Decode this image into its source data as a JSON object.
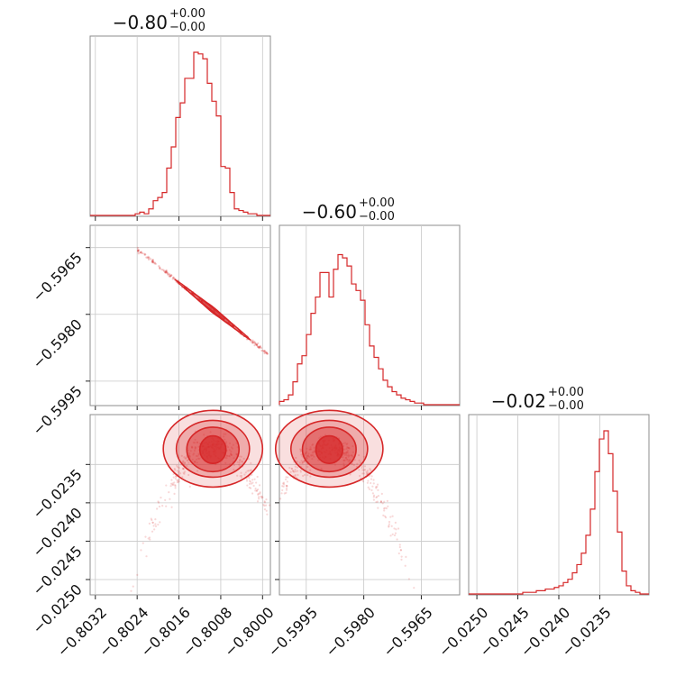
{
  "chart_data": {
    "type": "corner",
    "color": "#d62728",
    "parameters": [
      {
        "index": 0,
        "title_main": "−0.80",
        "title_sup": "+0.00",
        "title_sub": "−0.00",
        "ticks": [
          -0.8032,
          -0.8024,
          -0.8016,
          -0.8008,
          -0.8
        ],
        "tick_labels": [
          "−0.8032",
          "−0.8024",
          "−0.8016",
          "−0.8008",
          "−0.8000"
        ],
        "range": [
          -0.8033,
          -0.79985
        ],
        "hist": [
          0,
          0,
          0,
          0,
          0,
          0,
          0,
          0,
          0,
          0,
          0.01,
          0.02,
          0.01,
          0.04,
          0.09,
          0.11,
          0.14,
          0.29,
          0.42,
          0.6,
          0.69,
          0.84,
          0.84,
          1.0,
          0.99,
          0.96,
          0.81,
          0.7,
          0.61,
          0.3,
          0.29,
          0.14,
          0.04,
          0.03,
          0.02,
          0.01,
          0.01,
          0,
          0,
          0
        ]
      },
      {
        "index": 1,
        "title_main": "−0.60",
        "title_sup": "+0.00",
        "title_sub": "−0.00",
        "ticks": [
          -0.5995,
          -0.598,
          -0.5965
        ],
        "tick_labels": [
          "−0.5995",
          "−0.5980",
          "−0.5965"
        ],
        "range": [
          -0.6002,
          -0.5955
        ],
        "hist": [
          0.02,
          0.03,
          0.06,
          0.14,
          0.25,
          0.3,
          0.43,
          0.56,
          0.66,
          0.81,
          0.81,
          0.66,
          0.83,
          0.92,
          0.9,
          0.85,
          0.74,
          0.7,
          0.64,
          0.49,
          0.36,
          0.29,
          0.22,
          0.15,
          0.11,
          0.08,
          0.06,
          0.04,
          0.03,
          0.02,
          0.01,
          0.01,
          0,
          0,
          0,
          0,
          0,
          0,
          0,
          0
        ]
      },
      {
        "index": 2,
        "title_main": "−0.02",
        "title_sup": "+0.00",
        "title_sub": "−0.00",
        "ticks": [
          -0.025,
          -0.0245,
          -0.024,
          -0.0235
        ],
        "tick_labels": [
          "−0.0250",
          "−0.0245",
          "−0.0240",
          "−0.0235"
        ],
        "range": [
          -0.0251,
          -0.0229
        ],
        "hist": [
          0,
          0,
          0,
          0,
          0,
          0,
          0,
          0,
          0,
          0,
          0,
          0,
          0.01,
          0.01,
          0.01,
          0.02,
          0.02,
          0.03,
          0.03,
          0.04,
          0.05,
          0.07,
          0.09,
          0.13,
          0.18,
          0.25,
          0.36,
          0.52,
          0.75,
          0.95,
          1.0,
          0.86,
          0.63,
          0.38,
          0.14,
          0.05,
          0.02,
          0.01,
          0,
          0
        ]
      }
    ],
    "y_ticks_row1": [
      -0.5965,
      -0.598,
      -0.5995
    ],
    "y_tick_labels_row1": [
      "−0.5965",
      "−0.5980",
      "−0.5995"
    ],
    "y_ticks_row2": [
      -0.0235,
      -0.024,
      -0.0245,
      -0.025
    ],
    "y_tick_labels_row2": [
      "−0.0235",
      "−0.0240",
      "−0.0245",
      "−0.0250"
    ],
    "contours_01": {
      "center": [
        -0.80095,
        -0.5979
      ],
      "direction": [
        1,
        -0.94
      ],
      "half_lengths_x": [
        0.00072,
        0.00055,
        0.0004,
        0.00022
      ],
      "width": [
        0.00012,
        9e-05,
        7e-05,
        4e-05
      ],
      "scatter_x_range": [
        -0.8024,
        -0.7999
      ]
    },
    "contours_02": {
      "center": [
        -0.80095,
        -0.02322
      ],
      "radii_x": [
        0.00095,
        0.0007,
        0.0005,
        0.00025
      ],
      "radii_y": [
        0.0005,
        0.00035,
        0.00025,
        0.00012
      ]
    },
    "contours_12": {
      "center": [
        -0.5989,
        -0.02322
      ],
      "radii_x": [
        0.0014,
        0.001,
        0.0007,
        0.00035
      ],
      "radii_y": [
        0.0005,
        0.00035,
        0.00025,
        0.00012
      ]
    }
  }
}
